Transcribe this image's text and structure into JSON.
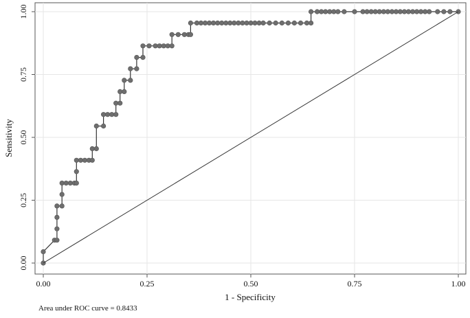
{
  "chart_data": {
    "type": "line",
    "title": "",
    "xlabel": "1 - Specificity",
    "ylabel": "Sensitivity",
    "xlim": [
      0,
      1
    ],
    "ylim": [
      0,
      1
    ],
    "x_ticks": [
      "0.00",
      "0.25",
      "0.50",
      "0.75",
      "1.00"
    ],
    "y_ticks": [
      "0.00",
      "0.25",
      "0.50",
      "0.75",
      "1.00"
    ],
    "grid": true,
    "note": "Area under ROC curve = 0.8433",
    "series": [
      {
        "kind": "roc-curve",
        "marker_color": "#6e6e6e",
        "line_color": "#333333",
        "points": [
          [
            0.0,
            0.0
          ],
          [
            0.0,
            0.045
          ],
          [
            0.027,
            0.091
          ],
          [
            0.033,
            0.091
          ],
          [
            0.033,
            0.136
          ],
          [
            0.033,
            0.182
          ],
          [
            0.033,
            0.227
          ],
          [
            0.045,
            0.227
          ],
          [
            0.045,
            0.273
          ],
          [
            0.045,
            0.318
          ],
          [
            0.055,
            0.318
          ],
          [
            0.065,
            0.318
          ],
          [
            0.075,
            0.318
          ],
          [
            0.08,
            0.318
          ],
          [
            0.08,
            0.364
          ],
          [
            0.08,
            0.409
          ],
          [
            0.09,
            0.409
          ],
          [
            0.1,
            0.409
          ],
          [
            0.11,
            0.409
          ],
          [
            0.118,
            0.409
          ],
          [
            0.118,
            0.455
          ],
          [
            0.128,
            0.455
          ],
          [
            0.128,
            0.545
          ],
          [
            0.145,
            0.545
          ],
          [
            0.145,
            0.591
          ],
          [
            0.155,
            0.591
          ],
          [
            0.165,
            0.591
          ],
          [
            0.175,
            0.591
          ],
          [
            0.175,
            0.636
          ],
          [
            0.185,
            0.636
          ],
          [
            0.185,
            0.682
          ],
          [
            0.195,
            0.682
          ],
          [
            0.195,
            0.727
          ],
          [
            0.21,
            0.727
          ],
          [
            0.21,
            0.773
          ],
          [
            0.225,
            0.773
          ],
          [
            0.225,
            0.818
          ],
          [
            0.24,
            0.818
          ],
          [
            0.24,
            0.864
          ],
          [
            0.255,
            0.864
          ],
          [
            0.27,
            0.864
          ],
          [
            0.28,
            0.864
          ],
          [
            0.29,
            0.864
          ],
          [
            0.3,
            0.864
          ],
          [
            0.31,
            0.864
          ],
          [
            0.31,
            0.909
          ],
          [
            0.325,
            0.909
          ],
          [
            0.34,
            0.909
          ],
          [
            0.35,
            0.909
          ],
          [
            0.355,
            0.909
          ],
          [
            0.355,
            0.955
          ],
          [
            0.37,
            0.955
          ],
          [
            0.38,
            0.955
          ],
          [
            0.39,
            0.955
          ],
          [
            0.4,
            0.955
          ],
          [
            0.41,
            0.955
          ],
          [
            0.42,
            0.955
          ],
          [
            0.43,
            0.955
          ],
          [
            0.44,
            0.955
          ],
          [
            0.45,
            0.955
          ],
          [
            0.46,
            0.955
          ],
          [
            0.47,
            0.955
          ],
          [
            0.48,
            0.955
          ],
          [
            0.49,
            0.955
          ],
          [
            0.5,
            0.955
          ],
          [
            0.51,
            0.955
          ],
          [
            0.52,
            0.955
          ],
          [
            0.53,
            0.955
          ],
          [
            0.545,
            0.955
          ],
          [
            0.56,
            0.955
          ],
          [
            0.575,
            0.955
          ],
          [
            0.59,
            0.955
          ],
          [
            0.605,
            0.955
          ],
          [
            0.62,
            0.955
          ],
          [
            0.635,
            0.955
          ],
          [
            0.645,
            0.955
          ],
          [
            0.645,
            1.0
          ],
          [
            0.66,
            1.0
          ],
          [
            0.67,
            1.0
          ],
          [
            0.68,
            1.0
          ],
          [
            0.69,
            1.0
          ],
          [
            0.7,
            1.0
          ],
          [
            0.71,
            1.0
          ],
          [
            0.725,
            1.0
          ],
          [
            0.75,
            1.0
          ],
          [
            0.77,
            1.0
          ],
          [
            0.78,
            1.0
          ],
          [
            0.79,
            1.0
          ],
          [
            0.8,
            1.0
          ],
          [
            0.81,
            1.0
          ],
          [
            0.82,
            1.0
          ],
          [
            0.83,
            1.0
          ],
          [
            0.84,
            1.0
          ],
          [
            0.85,
            1.0
          ],
          [
            0.86,
            1.0
          ],
          [
            0.87,
            1.0
          ],
          [
            0.88,
            1.0
          ],
          [
            0.89,
            1.0
          ],
          [
            0.9,
            1.0
          ],
          [
            0.91,
            1.0
          ],
          [
            0.92,
            1.0
          ],
          [
            0.93,
            1.0
          ],
          [
            0.95,
            1.0
          ],
          [
            0.965,
            1.0
          ],
          [
            0.98,
            1.0
          ],
          [
            1.0,
            1.0
          ]
        ]
      },
      {
        "kind": "reference-line",
        "line_color": "#333333",
        "points": [
          [
            0,
            0
          ],
          [
            1,
            1
          ]
        ]
      }
    ]
  },
  "colors": {
    "background": "#ffffff",
    "grid": "#e6e6e6",
    "frame": "#555555"
  }
}
